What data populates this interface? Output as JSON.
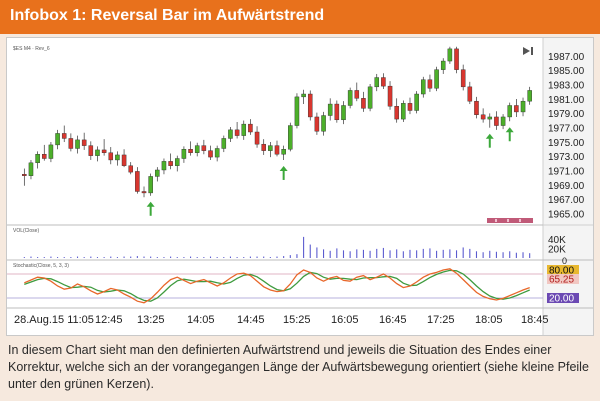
{
  "header": {
    "title": "Infobox 1: Reversal Bar im Aufwärtstrend"
  },
  "colors": {
    "header_bg": "#e8711c",
    "bull_candle": "#4caf2a",
    "bear_candle": "#d8362f",
    "arrow": "#3ca83a",
    "volume_bar": "#5b5bcf",
    "stoch_k": "#e8672a",
    "stoch_d": "#3f9b3f",
    "level_high_bg": "#e8b830",
    "level_low_bg": "#6b49b3"
  },
  "chart": {
    "price_panel_label": "$ES M4 · Rev_6",
    "volume_panel_label": "VOL(Close)",
    "stoch_panel_label": "Stochastic(Close, 5, 3, 3)"
  },
  "caption": "In diesem Chart sieht man den definierten Aufwärtstrend und jeweils die Situation des Endes einer Korrektur, welche sich an der vorangegangen Länge der Aufwärtsbewegung orientiert (siehe kleine Pfeile unter den grünen Kerzen).",
  "chart_data": {
    "type": "candlestick",
    "x_tick_labels": [
      "28.Aug.15 11:05",
      "12:45",
      "13:25",
      "14:05",
      "14:45",
      "15:25",
      "16:05",
      "16:45",
      "17:25",
      "18:05",
      "18:45"
    ],
    "price_tick_labels": [
      "1987.00",
      "1985.00",
      "1983.00",
      "1981.00",
      "1979.00",
      "1977.00",
      "1975.00",
      "1973.00",
      "1971.00",
      "1969.00",
      "1967.00",
      "1965.00"
    ],
    "ylim": [
      1964.5,
      1988.5
    ],
    "candles": [
      [
        1970.6,
        1971.4,
        1969.0,
        1970.4
      ],
      [
        1970.4,
        1972.6,
        1969.9,
        1972.2
      ],
      [
        1972.2,
        1973.8,
        1971.4,
        1973.4
      ],
      [
        1973.4,
        1974.7,
        1972.5,
        1972.8
      ],
      [
        1972.8,
        1975.1,
        1972.3,
        1974.7
      ],
      [
        1974.7,
        1976.8,
        1974.1,
        1976.3
      ],
      [
        1976.3,
        1977.4,
        1975.1,
        1975.6
      ],
      [
        1975.6,
        1976.3,
        1973.8,
        1974.2
      ],
      [
        1974.2,
        1976.0,
        1973.5,
        1975.4
      ],
      [
        1975.4,
        1976.4,
        1974.0,
        1974.6
      ],
      [
        1974.6,
        1975.2,
        1972.6,
        1973.2
      ],
      [
        1973.2,
        1974.5,
        1972.4,
        1974.0
      ],
      [
        1974.0,
        1975.5,
        1973.2,
        1973.6
      ],
      [
        1973.6,
        1974.4,
        1972.0,
        1972.6
      ],
      [
        1972.6,
        1973.8,
        1971.8,
        1973.3
      ],
      [
        1973.3,
        1974.1,
        1971.6,
        1971.8
      ],
      [
        1971.8,
        1972.3,
        1970.6,
        1970.9
      ],
      [
        1971.0,
        1971.6,
        1967.9,
        1968.2
      ],
      [
        1968.2,
        1968.9,
        1967.4,
        1968.0
      ],
      [
        1968.0,
        1970.7,
        1967.6,
        1970.3
      ],
      [
        1970.3,
        1971.6,
        1969.6,
        1971.2
      ],
      [
        1971.2,
        1972.8,
        1970.6,
        1972.4
      ],
      [
        1972.4,
        1973.5,
        1971.3,
        1971.8
      ],
      [
        1971.8,
        1973.2,
        1971.0,
        1972.8
      ],
      [
        1972.8,
        1974.5,
        1972.2,
        1974.1
      ],
      [
        1974.1,
        1975.2,
        1973.2,
        1973.6
      ],
      [
        1973.6,
        1975.0,
        1973.1,
        1974.6
      ],
      [
        1974.6,
        1975.4,
        1973.4,
        1973.9
      ],
      [
        1973.9,
        1974.6,
        1972.6,
        1973.0
      ],
      [
        1973.0,
        1974.6,
        1972.4,
        1974.2
      ],
      [
        1974.2,
        1976.0,
        1973.7,
        1975.6
      ],
      [
        1975.6,
        1977.2,
        1975.1,
        1976.8
      ],
      [
        1976.8,
        1977.9,
        1975.6,
        1976.0
      ],
      [
        1976.0,
        1978.1,
        1975.4,
        1977.6
      ],
      [
        1977.6,
        1978.3,
        1976.1,
        1976.5
      ],
      [
        1976.5,
        1977.3,
        1974.3,
        1974.8
      ],
      [
        1974.8,
        1975.5,
        1973.3,
        1973.9
      ],
      [
        1973.9,
        1975.1,
        1973.0,
        1974.6
      ],
      [
        1974.6,
        1975.3,
        1973.1,
        1973.4
      ],
      [
        1973.4,
        1974.6,
        1972.6,
        1974.1
      ],
      [
        1974.1,
        1977.8,
        1973.8,
        1977.4
      ],
      [
        1977.4,
        1981.9,
        1977.0,
        1981.4
      ],
      [
        1981.4,
        1982.4,
        1980.4,
        1981.8
      ],
      [
        1981.8,
        1982.3,
        1978.1,
        1978.6
      ],
      [
        1978.6,
        1979.2,
        1976.1,
        1976.6
      ],
      [
        1976.6,
        1979.3,
        1976.0,
        1978.8
      ],
      [
        1978.8,
        1981.2,
        1978.1,
        1980.4
      ],
      [
        1980.4,
        1980.9,
        1977.8,
        1978.2
      ],
      [
        1978.2,
        1980.8,
        1977.6,
        1980.2
      ],
      [
        1980.2,
        1982.7,
        1979.8,
        1982.3
      ],
      [
        1982.3,
        1983.4,
        1980.8,
        1981.2
      ],
      [
        1981.2,
        1982.1,
        1979.3,
        1979.8
      ],
      [
        1979.8,
        1983.2,
        1979.4,
        1982.8
      ],
      [
        1982.8,
        1984.6,
        1982.2,
        1984.1
      ],
      [
        1984.1,
        1984.7,
        1982.5,
        1982.9
      ],
      [
        1982.9,
        1983.6,
        1979.6,
        1980.1
      ],
      [
        1980.1,
        1981.2,
        1977.8,
        1978.3
      ],
      [
        1978.3,
        1980.9,
        1977.9,
        1980.5
      ],
      [
        1980.5,
        1981.3,
        1979.0,
        1979.5
      ],
      [
        1979.5,
        1982.2,
        1979.1,
        1981.8
      ],
      [
        1981.8,
        1984.2,
        1981.3,
        1983.8
      ],
      [
        1983.8,
        1984.5,
        1982.1,
        1982.6
      ],
      [
        1982.6,
        1985.6,
        1982.2,
        1985.2
      ],
      [
        1985.2,
        1986.8,
        1984.6,
        1986.4
      ],
      [
        1986.4,
        1988.4,
        1986.0,
        1988.1
      ],
      [
        1988.1,
        1988.4,
        1984.7,
        1985.2
      ],
      [
        1985.2,
        1985.9,
        1982.3,
        1982.8
      ],
      [
        1982.8,
        1983.5,
        1980.4,
        1980.8
      ],
      [
        1980.8,
        1981.4,
        1978.4,
        1978.9
      ],
      [
        1978.9,
        1979.8,
        1977.8,
        1978.3
      ],
      [
        1978.3,
        1979.1,
        1977.1,
        1978.6
      ],
      [
        1978.6,
        1979.4,
        1976.8,
        1977.4
      ],
      [
        1977.4,
        1979.0,
        1976.9,
        1978.6
      ],
      [
        1978.6,
        1980.6,
        1978.0,
        1980.2
      ],
      [
        1980.2,
        1981.1,
        1978.6,
        1979.3
      ],
      [
        1979.3,
        1981.3,
        1978.7,
        1980.8
      ],
      [
        1980.8,
        1982.8,
        1980.3,
        1982.3
      ]
    ],
    "arrows_at_candle_index": [
      19,
      39,
      70,
      73
    ],
    "volume_tick_labels": [
      "40K",
      "20K"
    ],
    "volume_ylim": [
      0,
      50
    ],
    "volume_thousands": [
      2,
      3,
      2,
      2,
      3,
      2,
      2,
      2,
      3,
      2,
      3,
      2,
      2,
      3,
      2,
      3,
      3,
      4,
      3,
      3,
      2,
      2,
      3,
      2,
      2,
      3,
      2,
      2,
      3,
      2,
      2,
      3,
      2,
      2,
      3,
      3,
      3,
      2,
      3,
      4,
      6,
      8,
      44,
      28,
      22,
      18,
      15,
      20,
      16,
      14,
      18,
      17,
      15,
      19,
      21,
      16,
      18,
      14,
      17,
      16,
      19,
      20,
      15,
      17,
      18,
      16,
      22,
      19,
      14,
      12,
      15,
      13,
      12,
      14,
      11,
      12,
      10
    ],
    "stoch_tick_labels": [
      "80.00",
      "65.25",
      "20.00"
    ],
    "stoch_ylim": [
      0,
      100
    ],
    "stoch_levels": [
      80,
      20
    ],
    "stoch_values_shown": {
      "k": 80.0,
      "d": 65.25
    },
    "stoch_k": [
      58,
      65,
      72,
      70,
      62,
      50,
      42,
      45,
      55,
      48,
      38,
      30,
      36,
      44,
      40,
      30,
      22,
      12,
      8,
      18,
      34,
      52,
      66,
      72,
      64,
      56,
      62,
      66,
      58,
      50,
      58,
      70,
      80,
      82,
      76,
      62,
      48,
      40,
      36,
      38,
      55,
      78,
      90,
      84,
      70,
      62,
      70,
      74,
      64,
      62,
      72,
      76,
      66,
      72,
      80,
      70,
      56,
      46,
      50,
      60,
      72,
      80,
      84,
      90,
      93,
      82,
      66,
      50,
      34,
      24,
      18,
      15,
      19,
      26,
      33,
      40,
      46
    ],
    "stoch_d": [
      54,
      60,
      66,
      69,
      68,
      61,
      53,
      46,
      47,
      49,
      47,
      39,
      35,
      37,
      40,
      38,
      31,
      21,
      14,
      12,
      20,
      35,
      51,
      63,
      67,
      64,
      61,
      61,
      62,
      58,
      55,
      59,
      69,
      77,
      79,
      73,
      62,
      50,
      41,
      38,
      43,
      57,
      74,
      84,
      81,
      72,
      67,
      69,
      69,
      67,
      66,
      70,
      71,
      71,
      73,
      74,
      69,
      57,
      51,
      52,
      61,
      71,
      79,
      85,
      89,
      88,
      80,
      66,
      50,
      36,
      25,
      19,
      17,
      20,
      26,
      33,
      40
    ]
  }
}
